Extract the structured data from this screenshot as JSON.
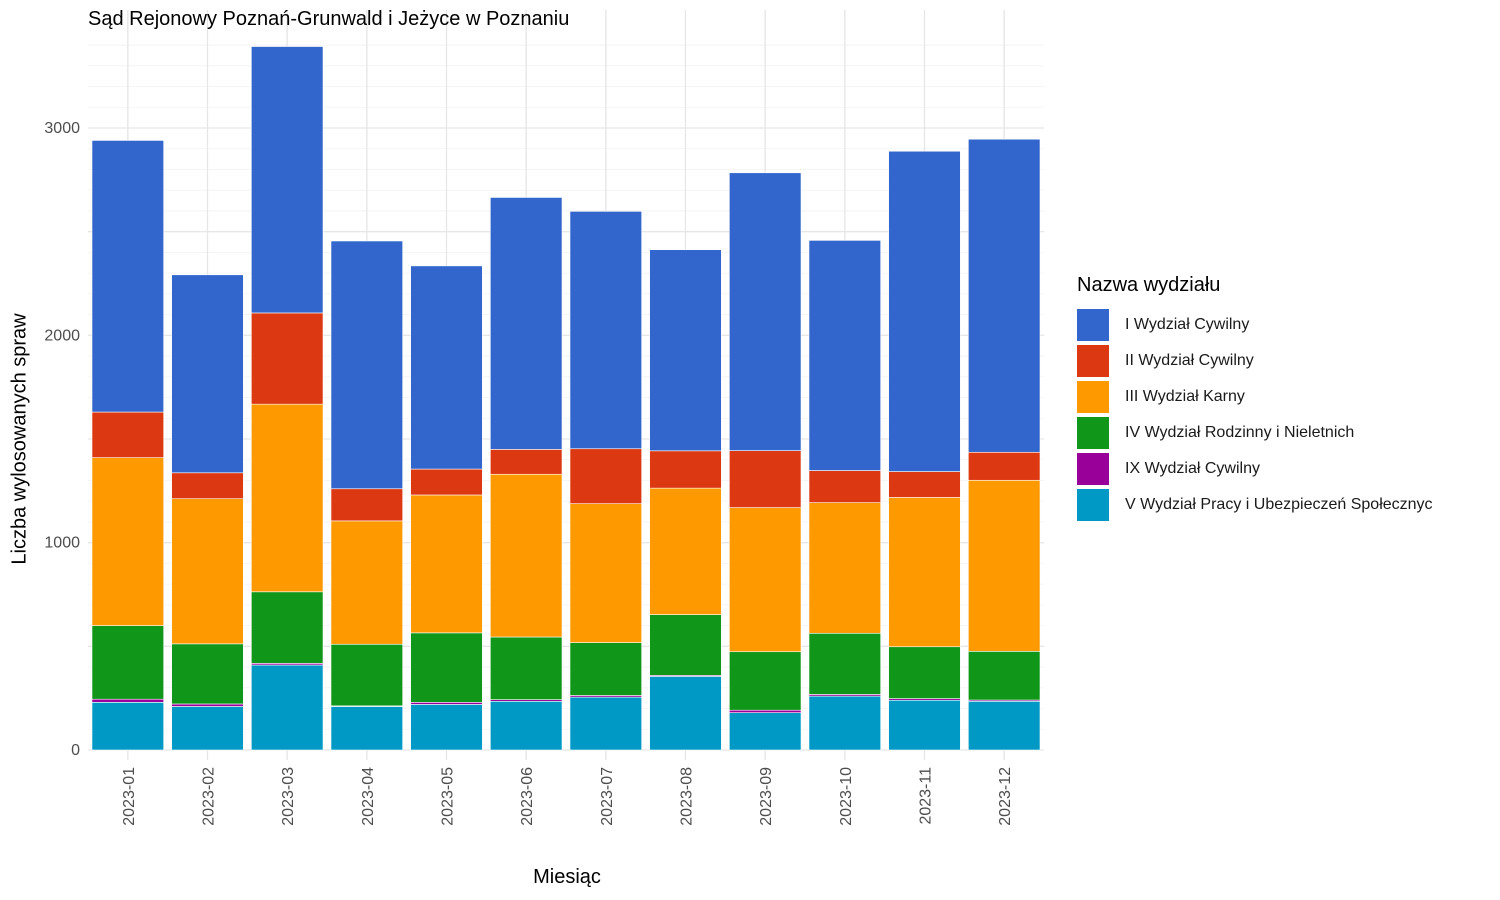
{
  "chart_data": {
    "type": "bar",
    "stacked": true,
    "title": "Sąd Rejonowy Poznań-Grunwald i Jeżyce w Poznaniu",
    "xlabel": "Miesiąc",
    "ylabel": "Liczba wylosowanych spraw",
    "ylim": [
      0,
      3400
    ],
    "yticks": [
      0,
      1000,
      2000,
      3000
    ],
    "ytick_labels": [
      "0",
      "1000",
      "2000",
      "3000"
    ],
    "grid": true,
    "legend_title": "Nazwa wydziału",
    "legend_position": "right",
    "categories": [
      "2023-01",
      "2023-02",
      "2023-03",
      "2023-04",
      "2023-05",
      "2023-06",
      "2023-07",
      "2023-08",
      "2023-09",
      "2023-10",
      "2023-11",
      "2023-12"
    ],
    "series": [
      {
        "name": "V Wydział Pracy i Ubezpieczeń Społecznyc",
        "color": "#0099C6",
        "values": [
          230,
          210,
          410,
          210,
          220,
          235,
          255,
          355,
          180,
          260,
          240,
          235
        ]
      },
      {
        "name": "IX Wydział Cywilny",
        "color": "#990099",
        "values": [
          15,
          12,
          8,
          3,
          10,
          8,
          8,
          5,
          12,
          8,
          8,
          6
        ]
      },
      {
        "name": "IV Wydział Rodzinny i Nieletnich",
        "color": "#109618",
        "values": [
          355,
          290,
          345,
          297,
          335,
          302,
          255,
          293,
          282,
          295,
          250,
          235
        ]
      },
      {
        "name": "III Wydział Karny",
        "color": "#FF9900",
        "values": [
          810,
          700,
          905,
          595,
          665,
          785,
          670,
          610,
          695,
          630,
          720,
          825
        ]
      },
      {
        "name": "II Wydział Cywilny",
        "color": "#DC3912",
        "values": [
          220,
          125,
          440,
          155,
          125,
          120,
          265,
          180,
          275,
          155,
          125,
          135
        ]
      },
      {
        "name": "I Wydział Cywilny",
        "color": "#3366CC",
        "values": [
          1310,
          955,
          1285,
          1195,
          980,
          1215,
          1145,
          970,
          1340,
          1110,
          1545,
          1510
        ]
      }
    ]
  },
  "legend_order": [
    5,
    4,
    3,
    2,
    1,
    0
  ]
}
